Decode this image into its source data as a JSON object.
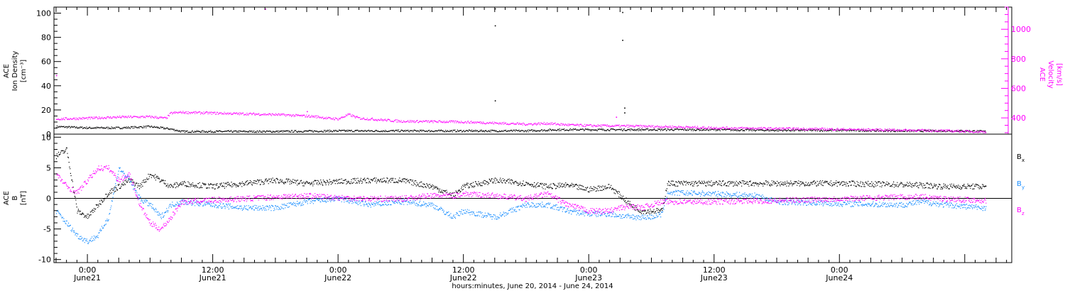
{
  "chart_data": [
    {
      "type": "scatter",
      "panel": "plasma",
      "ylabel_left": [
        "ACE",
        "Ion Density",
        "[cm⁻³]"
      ],
      "ylabel_right": [
        "ACE",
        "Velocity",
        "[km/s]"
      ],
      "ylim_left": [
        0,
        105
      ],
      "left_ticks": [
        "0",
        "20",
        "40",
        "60",
        "80",
        "100"
      ],
      "ylim_right": [
        290,
        1150
      ],
      "right_ticks": [
        "400",
        "600",
        "800",
        "1000"
      ],
      "colors": {
        "density": "#000000",
        "velocity": "#ff00ff"
      },
      "series": [
        {
          "name": "Ion Density",
          "axis": "left",
          "color": "#000000",
          "points": [
            [
              -3,
              6.5
            ],
            [
              0,
              5.5
            ],
            [
              3,
              5.5
            ],
            [
              6,
              6.5
            ],
            [
              8,
              4.5
            ],
            [
              9,
              2.5
            ],
            [
              12,
              2.5
            ],
            [
              18,
              2.5
            ],
            [
              24,
              3
            ],
            [
              30,
              3
            ],
            [
              36,
              3
            ],
            [
              39,
              3
            ],
            [
              42,
              3
            ],
            [
              45,
              4
            ],
            [
              48,
              4
            ],
            [
              54,
              4
            ],
            [
              60,
              4
            ],
            [
              66,
              3.5
            ],
            [
              72,
              3.5
            ],
            [
              78,
              3
            ],
            [
              84,
              3
            ],
            [
              86,
              2.5
            ]
          ],
          "outliers": [
            [
              39,
              104
            ],
            [
              39,
              90
            ],
            [
              39,
              28
            ],
            [
              51.2,
              101
            ],
            [
              51.2,
              78
            ],
            [
              51.4,
              22
            ],
            [
              51.4,
              18
            ]
          ]
        },
        {
          "name": "Velocity",
          "axis": "right",
          "color": "#ff00ff",
          "points": [
            [
              -3,
              395
            ],
            [
              0,
              400
            ],
            [
              3,
              408
            ],
            [
              6,
              410
            ],
            [
              7.5,
              400
            ],
            [
              8,
              435
            ],
            [
              9,
              440
            ],
            [
              12,
              435
            ],
            [
              18,
              425
            ],
            [
              21,
              415
            ],
            [
              22,
              410
            ],
            [
              23,
              400
            ],
            [
              24,
              395
            ],
            [
              25,
              425
            ],
            [
              26,
              400
            ],
            [
              30,
              380
            ],
            [
              36,
              375
            ],
            [
              42,
              360
            ],
            [
              44,
              365
            ],
            [
              46,
              355
            ],
            [
              48,
              350
            ],
            [
              54,
              345
            ],
            [
              60,
              335
            ],
            [
              66,
              330
            ],
            [
              72,
              325
            ],
            [
              78,
              320
            ],
            [
              82,
              315
            ],
            [
              86,
              308
            ]
          ],
          "outliers": [
            [
              -3,
              690
            ],
            [
              17,
              1140
            ],
            [
              21,
              446
            ],
            [
              50.6,
              408
            ]
          ]
        }
      ]
    },
    {
      "type": "scatter",
      "panel": "magnetic-field",
      "ylabel": [
        "ACE",
        "B",
        "[nT]"
      ],
      "ylim": [
        -10.5,
        10.5
      ],
      "y_ticks": [
        "-10",
        "-5",
        "0",
        "5",
        "10"
      ],
      "zero_line": true,
      "legend_placement": "right",
      "series": [
        {
          "name": "Bx",
          "legend": [
            "B",
            "x"
          ],
          "color": "#000000",
          "points": [
            [
              -3,
              7
            ],
            [
              -2,
              8
            ],
            [
              -1,
              -2
            ],
            [
              0,
              -3
            ],
            [
              1,
              -1
            ],
            [
              2,
              1
            ],
            [
              3,
              2
            ],
            [
              4,
              3
            ],
            [
              5,
              2
            ],
            [
              6,
              4
            ],
            [
              7,
              3
            ],
            [
              8,
              2
            ],
            [
              9,
              2.5
            ],
            [
              12,
              2
            ],
            [
              15,
              2.5
            ],
            [
              18,
              3
            ],
            [
              21,
              2.5
            ],
            [
              24,
              2.8
            ],
            [
              27,
              3
            ],
            [
              30,
              3
            ],
            [
              33,
              2
            ],
            [
              35,
              0.5
            ],
            [
              36,
              2
            ],
            [
              39,
              3
            ],
            [
              42,
              2.5
            ],
            [
              44,
              2
            ],
            [
              46,
              2.2
            ],
            [
              48,
              1.5
            ],
            [
              50,
              2
            ],
            [
              51,
              0.5
            ],
            [
              52,
              -1
            ],
            [
              53,
              -2
            ],
            [
              54,
              -2
            ],
            [
              55,
              -2
            ],
            [
              55.5,
              2.5
            ],
            [
              60,
              2.5
            ],
            [
              66,
              2.5
            ],
            [
              72,
              2.5
            ],
            [
              78,
              2.3
            ],
            [
              80,
              2.2
            ],
            [
              82,
              2
            ],
            [
              86,
              2
            ]
          ]
        },
        {
          "name": "By",
          "legend": [
            "B",
            "y"
          ],
          "color": "#1e90ff",
          "points": [
            [
              -3,
              -2
            ],
            [
              -2,
              -4
            ],
            [
              -1,
              -6
            ],
            [
              0,
              -7
            ],
            [
              1,
              -6
            ],
            [
              2,
              -3
            ],
            [
              3,
              5
            ],
            [
              4,
              3
            ],
            [
              5,
              0
            ],
            [
              6,
              -1
            ],
            [
              7,
              -3
            ],
            [
              8,
              -1
            ],
            [
              9,
              -0.5
            ],
            [
              12,
              -1
            ],
            [
              15,
              -1.5
            ],
            [
              18,
              -1.5
            ],
            [
              21,
              -0.5
            ],
            [
              24,
              0
            ],
            [
              27,
              -1
            ],
            [
              30,
              -0.5
            ],
            [
              33,
              -1
            ],
            [
              35,
              -3
            ],
            [
              36,
              -2
            ],
            [
              39,
              -3
            ],
            [
              42,
              -1
            ],
            [
              44,
              -1
            ],
            [
              46,
              -2
            ],
            [
              48,
              -2.5
            ],
            [
              50,
              -2.5
            ],
            [
              51,
              -2.8
            ],
            [
              52,
              -3
            ],
            [
              53,
              -3
            ],
            [
              54,
              -3
            ],
            [
              55,
              -2.5
            ],
            [
              55.5,
              1
            ],
            [
              60,
              0.8
            ],
            [
              64,
              0.5
            ],
            [
              66,
              -0.5
            ],
            [
              72,
              -0.8
            ],
            [
              78,
              -1
            ],
            [
              80,
              -0.5
            ],
            [
              82,
              -1
            ],
            [
              86,
              -1.5
            ]
          ]
        },
        {
          "name": "Bz",
          "legend": [
            "B",
            "z"
          ],
          "color": "#ff00ff",
          "points": [
            [
              -3,
              4
            ],
            [
              -2,
              2
            ],
            [
              -1,
              1
            ],
            [
              0,
              3
            ],
            [
              1,
              5
            ],
            [
              2,
              5
            ],
            [
              3,
              3
            ],
            [
              4,
              4
            ],
            [
              5,
              -1
            ],
            [
              6,
              -4
            ],
            [
              7,
              -5
            ],
            [
              8,
              -3
            ],
            [
              9,
              -0.5
            ],
            [
              12,
              -0.2
            ],
            [
              15,
              0
            ],
            [
              18,
              0.3
            ],
            [
              21,
              0.5
            ],
            [
              24,
              0.2
            ],
            [
              27,
              0
            ],
            [
              30,
              0
            ],
            [
              33,
              0.5
            ],
            [
              35,
              0.5
            ],
            [
              36,
              0.8
            ],
            [
              39,
              0.5
            ],
            [
              42,
              0
            ],
            [
              44,
              0.8
            ],
            [
              46,
              -1
            ],
            [
              48,
              -2
            ],
            [
              50,
              -2
            ],
            [
              51,
              -1.5
            ],
            [
              52,
              -1.2
            ],
            [
              53,
              -1.5
            ],
            [
              54,
              -1
            ],
            [
              55,
              -0.5
            ],
            [
              55.5,
              -0.5
            ],
            [
              60,
              -0.5
            ],
            [
              66,
              -0.3
            ],
            [
              72,
              0
            ],
            [
              78,
              0.3
            ],
            [
              80,
              0.3
            ],
            [
              82,
              0
            ],
            [
              86,
              -0.3
            ]
          ]
        }
      ]
    }
  ],
  "x_axis": {
    "range_hours": [
      -3.2,
      88.5
    ],
    "major_ticks": [
      {
        "hours": 0,
        "time": "0:00",
        "date": "June21"
      },
      {
        "hours": 12,
        "time": "12:00",
        "date": "June21"
      },
      {
        "hours": 24,
        "time": "0:00",
        "date": "June22"
      },
      {
        "hours": 36,
        "time": "12:00",
        "date": "June22"
      },
      {
        "hours": 48,
        "time": "0:00",
        "date": "June23"
      },
      {
        "hours": 60,
        "time": "12:00",
        "date": "June23"
      },
      {
        "hours": 72,
        "time": "0:00",
        "date": "June24"
      }
    ],
    "title": "hours:minutes, June 20, 2014 - June 24, 2014"
  }
}
